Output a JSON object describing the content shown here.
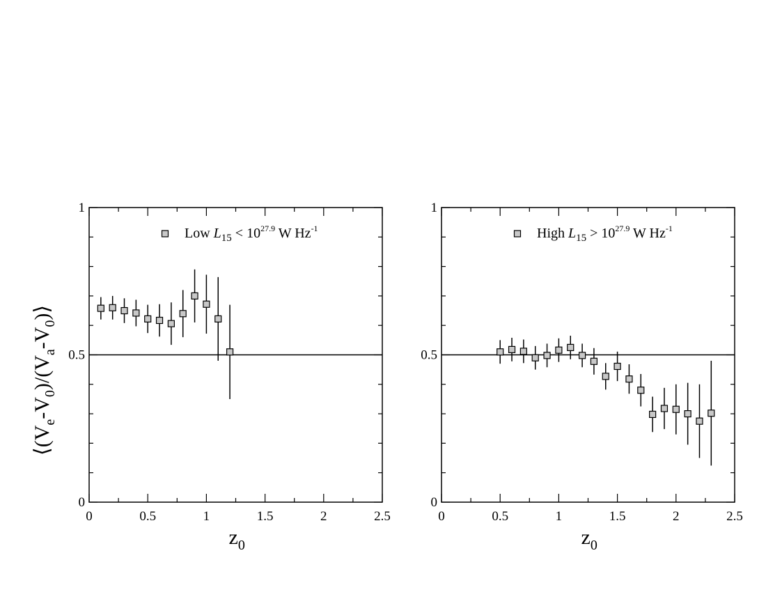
{
  "chart_data": [
    {
      "type": "scatter",
      "panel": "left",
      "xlabel": "z",
      "xlabel_sub": "0",
      "ylabel": "⟨(V  -V )/(V  -V )⟩",
      "ylabel_parts": [
        "⟨(V",
        "e",
        "-V",
        "0",
        ")/(V",
        "a",
        "-V",
        "0",
        ")⟩"
      ],
      "xlim": [
        0,
        2.5
      ],
      "ylim": [
        0,
        1
      ],
      "xticks": [
        0,
        0.5,
        1,
        1.5,
        2,
        2.5
      ],
      "xtick_labels": [
        "0",
        "0.5",
        "1",
        "1.5",
        "2",
        "2.5"
      ],
      "yticks": [
        0,
        0.5,
        1
      ],
      "ytick_labels": [
        "0",
        "0.5",
        "1"
      ],
      "reference_line": 0.5,
      "legend": {
        "placement": "top-right",
        "parts": [
          "Low ",
          "L",
          "15",
          " < 10",
          "27.9",
          " W Hz",
          "-1"
        ]
      },
      "series": [
        {
          "x": [
            0.1,
            0.2,
            0.3,
            0.4,
            0.5,
            0.6,
            0.7,
            0.8,
            0.9,
            1.0,
            1.1,
            1.2
          ],
          "y": [
            0.658,
            0.66,
            0.65,
            0.642,
            0.622,
            0.617,
            0.606,
            0.64,
            0.7,
            0.672,
            0.622,
            0.51
          ],
          "err": [
            0.038,
            0.04,
            0.042,
            0.045,
            0.048,
            0.055,
            0.072,
            0.08,
            0.09,
            0.1,
            0.142,
            0.16
          ]
        }
      ]
    },
    {
      "type": "scatter",
      "panel": "right",
      "xlabel": "z",
      "xlabel_sub": "0",
      "xlim": [
        0,
        2.5
      ],
      "ylim": [
        0,
        1
      ],
      "xticks": [
        0,
        0.5,
        1,
        1.5,
        2,
        2.5
      ],
      "xtick_labels": [
        "0",
        "0.5",
        "1",
        "1.5",
        "2",
        "2.5"
      ],
      "yticks": [
        0,
        0.5,
        1
      ],
      "ytick_labels": [
        "0",
        "0.5",
        "1"
      ],
      "reference_line": 0.5,
      "legend": {
        "placement": "top-right",
        "parts": [
          "High ",
          "L",
          "15",
          " > 10",
          "27.9",
          " W Hz",
          "-1"
        ]
      },
      "series": [
        {
          "x": [
            0.5,
            0.6,
            0.7,
            0.8,
            0.9,
            1.0,
            1.1,
            1.2,
            1.3,
            1.4,
            1.5,
            1.6,
            1.7,
            1.8,
            1.9,
            2.0,
            2.1,
            2.2,
            2.3
          ],
          "y": [
            0.51,
            0.518,
            0.512,
            0.49,
            0.498,
            0.516,
            0.525,
            0.498,
            0.478,
            0.427,
            0.461,
            0.418,
            0.38,
            0.298,
            0.318,
            0.315,
            0.3,
            0.275,
            0.302
          ],
          "err": [
            0.04,
            0.04,
            0.04,
            0.04,
            0.04,
            0.04,
            0.04,
            0.04,
            0.045,
            0.045,
            0.05,
            0.05,
            0.055,
            0.06,
            0.07,
            0.085,
            0.105,
            0.125,
            0.178
          ]
        }
      ]
    }
  ]
}
